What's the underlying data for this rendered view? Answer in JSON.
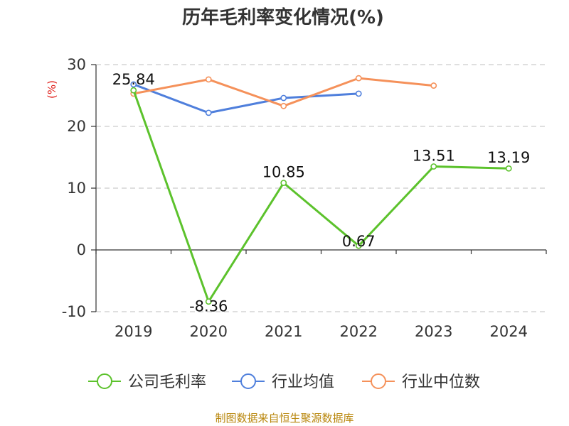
{
  "chart_data": {
    "type": "line",
    "title": "历年毛利率变化情况(%)",
    "ylabel": "(%)",
    "xlabel": "",
    "categories": [
      "2019",
      "2020",
      "2021",
      "2022",
      "2023",
      "2024"
    ],
    "ylim": [
      -10,
      30
    ],
    "yticks": [
      30,
      20,
      10,
      0,
      -10
    ],
    "grid": true,
    "legend_position": "bottom",
    "series": [
      {
        "name": "公司毛利率",
        "color": "#5cc22c",
        "values": [
          25.84,
          -8.36,
          10.85,
          0.67,
          13.51,
          13.19
        ],
        "labels": [
          "25.84",
          "-8.36",
          "10.85",
          "0.67",
          "13.51",
          "13.19"
        ]
      },
      {
        "name": "行业均值",
        "color": "#4f7fdc",
        "values": [
          26.8,
          22.2,
          24.6,
          25.3,
          null,
          null
        ]
      },
      {
        "name": "行业中位数",
        "color": "#f5915a",
        "values": [
          25.3,
          27.6,
          23.3,
          27.8,
          26.6,
          null
        ]
      }
    ]
  },
  "source": "制图数据来自恒生聚源数据库"
}
